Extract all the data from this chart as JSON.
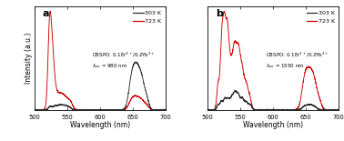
{
  "panel_a": {
    "label": "a",
    "annotation_line1": "CBSPO: 0.1Er$^{3+}$/0.2Yb$^{3+}$",
    "annotation_line2": "$\\lambda_{ex}$ = 980 nm",
    "legend_303": "303 K",
    "legend_723": "723 K"
  },
  "panel_b": {
    "label": "b",
    "annotation_line1": "CBSPO: 0.1Er$^{3+}$/0.2Yb$^{3+}$",
    "annotation_line2": "$\\lambda_{ex}$ = 1550 nm",
    "legend_303": "303 K",
    "legend_723": "723 K"
  },
  "xlabel": "Wavelength (nm)",
  "ylabel": "Intensity (a.u.)",
  "color_303": "#2b2b2b",
  "color_723": "#cc0000",
  "background": "#ffffff",
  "border_color": "#000000",
  "xlim": [
    500,
    700
  ],
  "xticks": [
    500,
    550,
    600,
    650,
    700
  ]
}
